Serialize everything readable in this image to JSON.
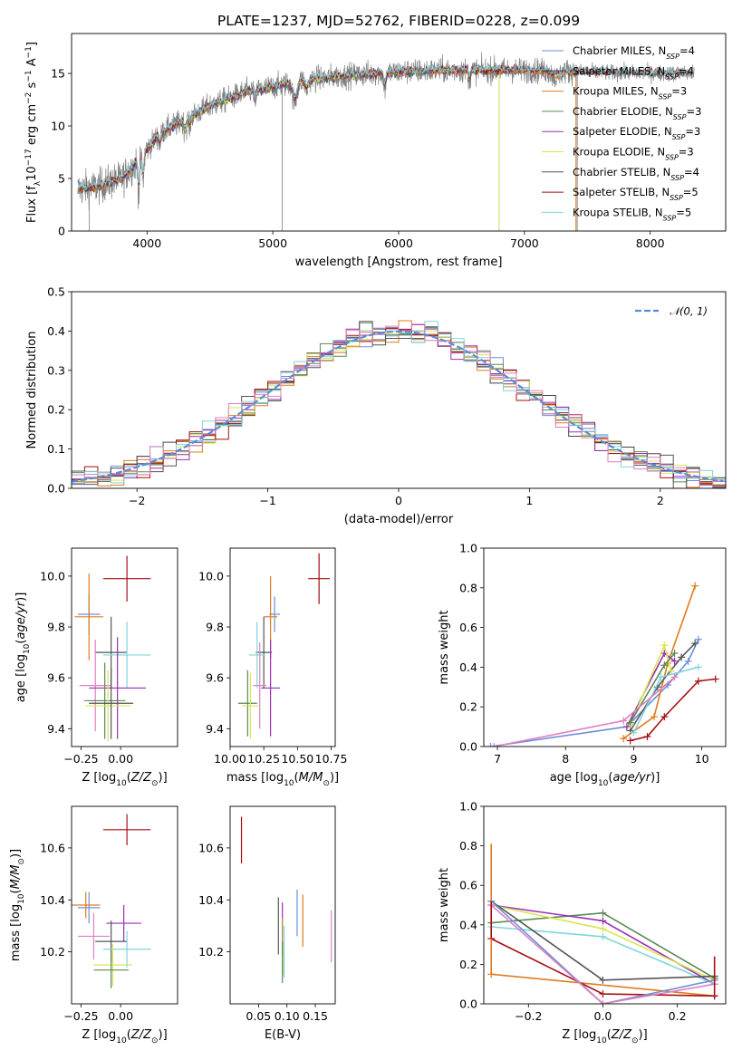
{
  "title": "PLATE=1237, MJD=52762, FIBERID=0228, z=0.099",
  "colors": {
    "Chabrier MILES": "#6b90d8",
    "Salpeter MILES": "#444444",
    "Kroupa MILES": "#e07c1f",
    "Chabrier ELODIE": "#5b8a55",
    "Salpeter ELODIE": "#9a2fb5",
    "Kroupa ELODIE": "#d8e650",
    "Chabrier STELIB": "#555555",
    "Salpeter STELIB": "#a50f15",
    "Kroupa STELIB": "#7fd5dc",
    "pink": "#e07fbf",
    "gaussian": "#5b8bd8"
  },
  "chart_data": [
    {
      "id": "spectrum",
      "type": "line",
      "xlabel": "wavelength [Angstrom, rest frame]",
      "ylabel": "Flux [fλ10⁻¹⁷ erg cm⁻² s⁻¹ A⁻¹]",
      "xlim": [
        3400,
        8600
      ],
      "ylim": [
        0,
        18.8
      ],
      "xticks": [
        4000,
        5000,
        6000,
        7000,
        8000
      ],
      "yticks": [
        0,
        5,
        10,
        15
      ],
      "legend_position": "right",
      "legend": [
        "Chabrier MILES, N_SSP=4",
        "Salpeter MILES, N_SSP=4",
        "Kroupa MILES, N_SSP=3",
        "Chabrier ELODIE, N_SSP=3",
        "Salpeter ELODIE, N_SSP=3",
        "Kroupa ELODIE, N_SSP=3",
        "Chabrier STELIB, N_SSP=4",
        "Salpeter STELIB, N_SSP=5",
        "Kroupa STELIB, N_SSP=5"
      ],
      "continuum": {
        "x": [
          3450,
          3600,
          3800,
          3950,
          4100,
          4300,
          4500,
          4800,
          5000,
          5200,
          5500,
          5800,
          6100,
          6400,
          6700,
          7000,
          7300,
          7600,
          8000,
          8300
        ],
        "y": [
          4.0,
          4.2,
          5.0,
          7.0,
          9.3,
          10.6,
          11.9,
          13.3,
          13.7,
          14.3,
          14.7,
          15.0,
          15.2,
          15.3,
          15.3,
          15.3,
          15.2,
          15.1,
          15.0,
          15.0
        ]
      }
    },
    {
      "id": "residuals",
      "type": "bar",
      "xlabel": "(data-model)/error",
      "ylabel": "Normed distribution",
      "xlim": [
        -2.5,
        2.5
      ],
      "ylim": [
        0,
        0.5
      ],
      "xticks": [
        -2,
        -1,
        0,
        1,
        2
      ],
      "yticks": [
        0.0,
        0.1,
        0.2,
        0.3,
        0.4,
        0.5
      ],
      "legend": [
        "𝒩(0, 1)"
      ],
      "legend_position": "top-right",
      "bin_width": 0.1
    },
    {
      "id": "age_vs_Z",
      "type": "scatter",
      "xlabel": "Z [log10(Z/Z⊙)]",
      "ylabel": "age  [log10(age/yr)]",
      "xlim": [
        -0.31,
        0.36
      ],
      "ylim": [
        9.33,
        10.11
      ],
      "xticks": [
        -0.25,
        0.0
      ],
      "yticks": [
        9.4,
        9.6,
        9.8,
        10.0
      ],
      "points": [
        {
          "series": "Salpeter STELIB",
          "x": 0.04,
          "y": 9.99,
          "xerr": 0.15,
          "yerr": 0.09
        },
        {
          "series": "Chabrier MILES",
          "x": -0.2,
          "y": 9.85,
          "xerr": 0.07,
          "yerr": 0.08
        },
        {
          "series": "Kroupa MILES",
          "x": -0.2,
          "y": 9.84,
          "xerr": 0.09,
          "yerr": 0.17
        },
        {
          "series": "Chabrier STELIB",
          "x": -0.06,
          "y": 9.7,
          "xerr": 0.1,
          "yerr": 0.14
        },
        {
          "series": "Kroupa STELIB",
          "x": 0.04,
          "y": 9.69,
          "xerr": 0.15,
          "yerr": 0.13
        },
        {
          "series": "pink",
          "x": -0.16,
          "y": 9.57,
          "xerr": 0.1,
          "yerr": 0.18
        },
        {
          "series": "Salpeter ELODIE",
          "x": -0.02,
          "y": 9.56,
          "xerr": 0.18,
          "yerr": 0.2
        },
        {
          "series": "Chabrier ELODIE",
          "x": -0.1,
          "y": 9.51,
          "xerr": 0.13,
          "yerr": 0.15
        },
        {
          "series": "Kroupa ELODIE",
          "x": -0.08,
          "y": 9.49,
          "xerr": 0.14,
          "yerr": 0.14
        },
        {
          "series": "Chabrier STELIB",
          "x": -0.06,
          "y": 9.5,
          "xerr": 0.14,
          "yerr": 0.14
        }
      ]
    },
    {
      "id": "age_vs_mass",
      "type": "scatter",
      "xlabel": "mass [log10(M/M⊙)]",
      "ylabel": "",
      "xlim": [
        10.0,
        10.78
      ],
      "ylim": [
        9.33,
        10.11
      ],
      "xticks": [
        10.0,
        10.25,
        10.5,
        10.75
      ],
      "yticks": [
        9.4,
        9.6,
        9.8,
        10.0
      ],
      "points": [
        {
          "series": "Salpeter STELIB",
          "x": 10.66,
          "y": 9.99,
          "xerr": 0.08,
          "yerr": 0.1
        },
        {
          "series": "Chabrier MILES",
          "x": 10.33,
          "y": 9.85,
          "xerr": 0.04,
          "yerr": 0.07
        },
        {
          "series": "Kroupa MILES",
          "x": 10.3,
          "y": 9.84,
          "xerr": 0.05,
          "yerr": 0.16
        },
        {
          "series": "Chabrier STELIB",
          "x": 10.25,
          "y": 9.7,
          "xerr": 0.06,
          "yerr": 0.14
        },
        {
          "series": "Kroupa STELIB",
          "x": 10.2,
          "y": 9.69,
          "xerr": 0.06,
          "yerr": 0.13
        },
        {
          "series": "pink",
          "x": 10.22,
          "y": 9.57,
          "xerr": 0.05,
          "yerr": 0.17
        },
        {
          "series": "Salpeter ELODIE",
          "x": 10.3,
          "y": 9.56,
          "xerr": 0.07,
          "yerr": 0.19
        },
        {
          "series": "Chabrier ELODIE",
          "x": 10.13,
          "y": 9.5,
          "xerr": 0.07,
          "yerr": 0.13
        },
        {
          "series": "Kroupa ELODIE",
          "x": 10.15,
          "y": 9.49,
          "xerr": 0.06,
          "yerr": 0.13
        }
      ]
    },
    {
      "id": "massweight_vs_age",
      "type": "line",
      "xlabel": "age  [log10(age/yr)]",
      "ylabel": "mass weight",
      "xlim": [
        6.8,
        10.35
      ],
      "ylim": [
        0,
        1.0
      ],
      "xticks": [
        7,
        8,
        9,
        10
      ],
      "yticks": [
        0.0,
        0.2,
        0.4,
        0.6,
        0.8,
        1.0
      ],
      "series": [
        {
          "name": "Chabrier MILES",
          "x": [
            6.9,
            8.9,
            9.5,
            9.8,
            9.95
          ],
          "y": [
            0.0,
            0.1,
            0.31,
            0.43,
            0.54
          ]
        },
        {
          "name": "Kroupa MILES",
          "x": [
            8.85,
            9.3,
            9.5,
            9.9
          ],
          "y": [
            0.04,
            0.15,
            0.42,
            0.81
          ]
        },
        {
          "name": "Salpeter STELIB",
          "x": [
            8.95,
            9.2,
            9.45,
            9.95,
            10.2
          ],
          "y": [
            0.03,
            0.05,
            0.15,
            0.33,
            0.34
          ]
        },
        {
          "name": "Chabrier STELIB",
          "x": [
            8.95,
            9.35,
            9.7,
            9.9
          ],
          "y": [
            0.08,
            0.3,
            0.45,
            0.52
          ]
        },
        {
          "name": "Salpeter ELODIE",
          "x": [
            8.9,
            9.45,
            9.6
          ],
          "y": [
            0.1,
            0.47,
            0.43
          ]
        },
        {
          "name": "Kroupa ELODIE",
          "x": [
            8.95,
            9.45,
            9.55
          ],
          "y": [
            0.11,
            0.51,
            0.38
          ]
        },
        {
          "name": "Chabrier ELODIE",
          "x": [
            8.95,
            9.45,
            9.6
          ],
          "y": [
            0.12,
            0.41,
            0.47
          ]
        },
        {
          "name": "Kroupa STELIB",
          "x": [
            9.0,
            9.4,
            9.95
          ],
          "y": [
            0.07,
            0.35,
            0.4
          ]
        },
        {
          "name": "pink",
          "x": [
            6.95,
            8.85,
            9.6
          ],
          "y": [
            0.0,
            0.13,
            0.35
          ]
        }
      ]
    },
    {
      "id": "mass_vs_Z",
      "type": "scatter",
      "xlabel": "Z [log10(Z/Z⊙)]",
      "ylabel": "mass [log10(M/M⊙)]",
      "xlim": [
        -0.31,
        0.36
      ],
      "ylim": [
        10.0,
        10.76
      ],
      "xticks": [
        -0.25,
        0.0
      ],
      "yticks": [
        10.2,
        10.4,
        10.6
      ],
      "points": [
        {
          "series": "Salpeter STELIB",
          "x": 0.04,
          "y": 10.67,
          "xerr": 0.15,
          "yerr": 0.06
        },
        {
          "series": "Chabrier MILES",
          "x": -0.2,
          "y": 10.37,
          "xerr": 0.07,
          "yerr": 0.06
        },
        {
          "series": "Kroupa MILES",
          "x": -0.22,
          "y": 10.38,
          "xerr": 0.09,
          "yerr": 0.05
        },
        {
          "series": "Salpeter ELODIE",
          "x": 0.02,
          "y": 10.31,
          "xerr": 0.11,
          "yerr": 0.07
        },
        {
          "series": "Chabrier STELIB",
          "x": -0.06,
          "y": 10.24,
          "xerr": 0.1,
          "yerr": 0.08
        },
        {
          "series": "pink",
          "x": -0.17,
          "y": 10.26,
          "xerr": 0.1,
          "yerr": 0.09
        },
        {
          "series": "Kroupa STELIB",
          "x": 0.04,
          "y": 10.21,
          "xerr": 0.15,
          "yerr": 0.07
        },
        {
          "series": "Kroupa ELODIE",
          "x": -0.05,
          "y": 10.15,
          "xerr": 0.12,
          "yerr": 0.08
        },
        {
          "series": "Chabrier ELODIE",
          "x": -0.06,
          "y": 10.13,
          "xerr": 0.11,
          "yerr": 0.07
        }
      ]
    },
    {
      "id": "mass_vs_ebv",
      "type": "scatter",
      "xlabel": "E(B-V)",
      "ylabel": "",
      "xlim": [
        0.0,
        0.185
      ],
      "ylim": [
        10.0,
        10.76
      ],
      "xticks": [
        0.05,
        0.1,
        0.15
      ],
      "yticks": [
        10.2,
        10.4,
        10.6
      ],
      "points": [
        {
          "series": "Salpeter STELIB",
          "x": 0.02,
          "y": 10.63,
          "yerr": 0.09
        },
        {
          "series": "Chabrier STELIB",
          "x": 0.085,
          "y": 10.3,
          "yerr": 0.11
        },
        {
          "series": "Salpeter ELODIE",
          "x": 0.092,
          "y": 10.29,
          "yerr": 0.1
        },
        {
          "series": "Kroupa ELODIE",
          "x": 0.093,
          "y": 10.22,
          "yerr": 0.11
        },
        {
          "series": "Chabrier MILES",
          "x": 0.118,
          "y": 10.35,
          "yerr": 0.09
        },
        {
          "series": "Kroupa MILES",
          "x": 0.128,
          "y": 10.32,
          "yerr": 0.1
        },
        {
          "series": "Chabrier ELODIE",
          "x": 0.092,
          "y": 10.16,
          "yerr": 0.08
        },
        {
          "series": "Kroupa STELIB",
          "x": 0.095,
          "y": 10.2,
          "yerr": 0.1
        },
        {
          "series": "pink",
          "x": 0.178,
          "y": 10.26,
          "yerr": 0.1
        }
      ]
    },
    {
      "id": "massweight_vs_Z",
      "type": "line",
      "xlabel": "Z [log10(Z/Z⊙)]",
      "ylabel": "mass weight",
      "xlim": [
        -0.32,
        0.33
      ],
      "ylim": [
        0,
        1.0
      ],
      "xticks": [
        -0.2,
        0.0,
        0.2
      ],
      "yticks": [
        0.0,
        0.2,
        0.4,
        0.6,
        0.8,
        1.0
      ],
      "series": [
        {
          "name": "Kroupa MILES",
          "x": [
            -0.3,
            0.3
          ],
          "y": [
            0.15,
            0.04
          ]
        },
        {
          "name": "Chabrier ELODIE",
          "x": [
            -0.3,
            0.0,
            0.3
          ],
          "y": [
            0.41,
            0.46,
            0.13
          ]
        },
        {
          "name": "Salpeter ELODIE",
          "x": [
            -0.3,
            0.0,
            0.3
          ],
          "y": [
            0.5,
            0.42,
            0.1
          ]
        },
        {
          "name": "Kroupa ELODIE",
          "x": [
            -0.3,
            0.0,
            0.3
          ],
          "y": [
            0.5,
            0.38,
            0.12
          ]
        },
        {
          "name": "Kroupa STELIB",
          "x": [
            -0.3,
            0.0,
            0.3
          ],
          "y": [
            0.39,
            0.34,
            0.1
          ]
        },
        {
          "name": "Chabrier STELIB",
          "x": [
            -0.3,
            0.0,
            0.3
          ],
          "y": [
            0.52,
            0.12,
            0.14
          ]
        },
        {
          "name": "Salpeter STELIB",
          "x": [
            -0.3,
            0.0,
            0.3
          ],
          "y": [
            0.33,
            0.05,
            0.04
          ]
        },
        {
          "name": "Chabrier MILES",
          "x": [
            -0.3,
            0.0,
            0.3
          ],
          "y": [
            0.52,
            0.0,
            0.12
          ]
        },
        {
          "name": "pink",
          "x": [
            -0.3,
            0.0,
            0.3
          ],
          "y": [
            0.5,
            0.0,
            0.1
          ]
        }
      ],
      "vertical_bars": [
        {
          "series": "Kroupa MILES",
          "x": -0.3,
          "y0": 0.15,
          "y1": 0.81
        },
        {
          "series": "Salpeter STELIB",
          "x": 0.3,
          "y0": 0.03,
          "y1": 0.24
        },
        {
          "series": "Salpeter STELIB",
          "x": -0.3,
          "y0": 0.33,
          "y1": 0.52
        }
      ]
    }
  ]
}
